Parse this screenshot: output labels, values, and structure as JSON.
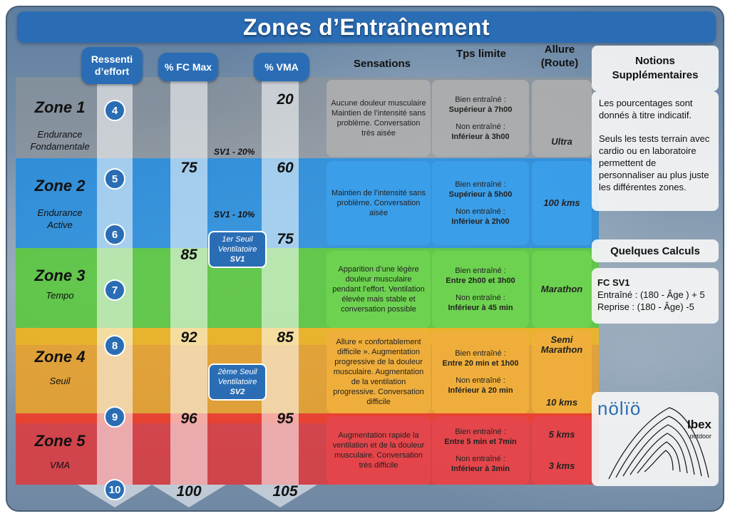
{
  "title": "Zones d’Entraînement",
  "headers": {
    "rpe": "Ressenti d’effort",
    "fc": "% FC Max",
    "vma": "% VMA",
    "sensations": "Sensations",
    "tps": "Tps limite",
    "allure": "Allure (Route)"
  },
  "zones": [
    {
      "name": "Zone 1",
      "subtitle": "Endurance Fondamentale"
    },
    {
      "name": "Zone 2",
      "subtitle": "Endurance Active"
    },
    {
      "name": "Zone 3",
      "subtitle": "Tempo"
    },
    {
      "name": "Zone 4",
      "subtitle": "Seuil"
    },
    {
      "name": "Zone 5",
      "subtitle": "VMA"
    }
  ],
  "rpe": [
    "4",
    "5",
    "6",
    "7",
    "8",
    "9",
    "10"
  ],
  "fc_values": [
    "75",
    "85",
    "92",
    "96",
    "100"
  ],
  "vma_values": [
    "20",
    "60",
    "75",
    "85",
    "95",
    "105"
  ],
  "sv_labels": {
    "sv1_20": "SV1 - 20%",
    "sv1_10": "SV1 - 10%",
    "seuil1": {
      "line1": "1er Seuil",
      "line2": "Ventilatoire",
      "line3": "SV1"
    },
    "seuil2": {
      "line1": "2ème Seuil",
      "line2": "Ventilatoire",
      "line3": "SV2"
    }
  },
  "sensations": [
    "Aucune douleur musculaire Maintien de l’intensité sans problème. Conversation très aisée",
    "Maintien de l’intensité sans problème. Conversation aisée",
    "Apparition d’une légère douleur musculaire pendant l’effort. Ventilation élevée mais stable et conversation possible",
    "Allure « confortablement difficile ». Augmentation progressive de la douleur musculaire. Augmentation de la ventilation progressive. Conversation difficile",
    "Augmentation rapide la ventilation et de la douleur musculaire. Conversation très difficile"
  ],
  "tps": [
    {
      "trained_label": "Bien entraîné :",
      "trained_value": "Supérieur à 7h00",
      "untrained_label": "Non entraîné :",
      "untrained_value": "Inférieur à 3h00"
    },
    {
      "trained_label": "Bien entraîné :",
      "trained_value": "Supérieur à 5h00",
      "untrained_label": "Non entraîné :",
      "untrained_value": "Inférieur à 2h00"
    },
    {
      "trained_label": "Bien entraîné :",
      "trained_value": "Entre 2h00 et 3h00",
      "untrained_label": "Non entraîné :",
      "untrained_value": "Inférieur à 45 min"
    },
    {
      "trained_label": "Bien entraîné :",
      "trained_value": "Entre 20 min et 1h00",
      "untrained_label": "Non entraîné :",
      "untrained_value": "Inférieur à 20 min"
    },
    {
      "trained_label": "Bien entraîné :",
      "trained_value": "Entre 5 min et 7min",
      "untrained_label": "Non entraîné :",
      "untrained_value": "Inférieur à 3min"
    }
  ],
  "allure": {
    "z1": "Ultra",
    "z2": "100 kms",
    "z3": "Marathon",
    "z4a": "Semi Marathon",
    "z4b": "10 kms",
    "z5a": "5 kms",
    "z5b": "3 kms"
  },
  "sidebar": {
    "notions_title": "Notions Supplémentaires",
    "notions_p1": "Les pourcentages sont donnés à titre indicatif.",
    "notions_p2": "Seuls les tests terrain avec cardio ou en laboratoire permettent de personnaliser au plus juste les différentes zones.",
    "calc_title": "Quelques Calculs",
    "calc_fc_title": "FC SV1",
    "calc_line1": "Entraîné : (180 - Âge ) + 5",
    "calc_line2": "Reprise : (180 - Âge) -5"
  },
  "logos": {
    "nolio": "nölïö",
    "ibex": "Ibex",
    "ibex_sub": "outdoor"
  },
  "colors": {
    "header_blue": "#2a6db5",
    "zone1": "#969696",
    "zone2": "#1e8ce1",
    "zone3": "#5ac83c",
    "zone4": "#eba028",
    "zone5": "#e1373c"
  }
}
